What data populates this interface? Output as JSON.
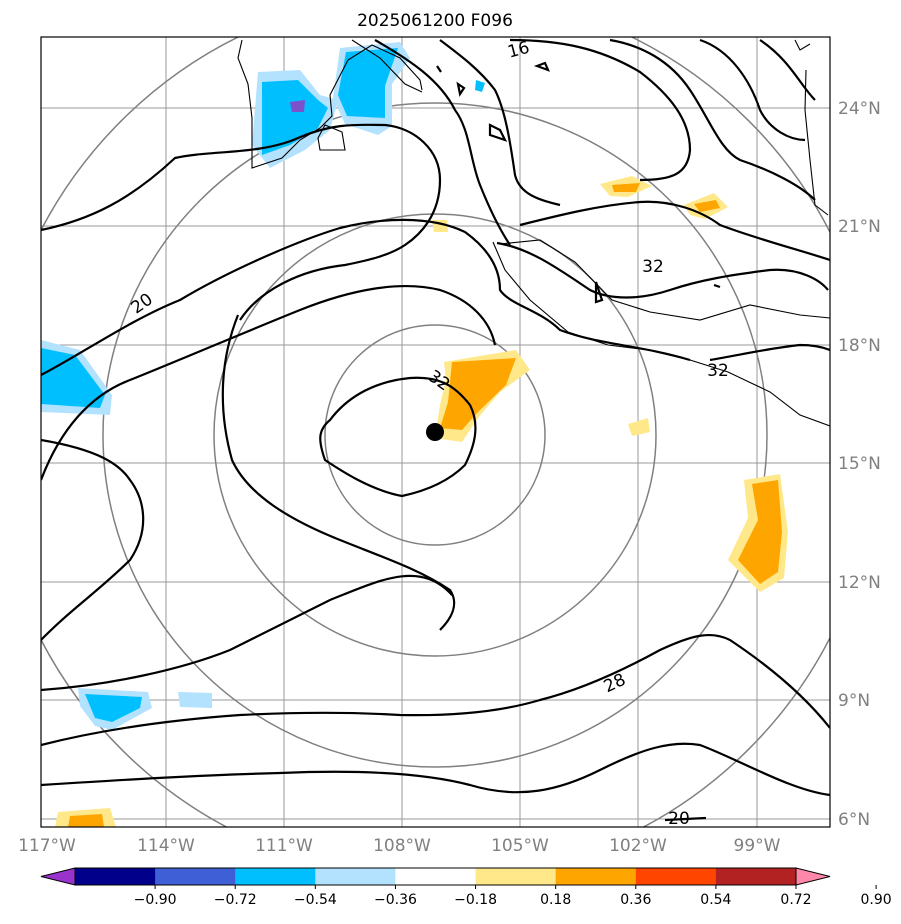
{
  "title": "2025061200 F096",
  "lat_labels": [
    "24°N",
    "21°N",
    "18°N",
    "15°N",
    "12°N",
    "9°N",
    "6°N"
  ],
  "lon_labels": [
    "117°W",
    "114°W",
    "111°W",
    "108°W",
    "105°W",
    "102°W",
    "99°W"
  ],
  "contour_labels": [
    "16",
    "20",
    "32",
    "32",
    "32",
    "28",
    "20"
  ],
  "colorbar": {
    "ticks": [
      "−0.90",
      "−0.72",
      "−0.54",
      "−0.36",
      "−0.18",
      "0.18",
      "0.36",
      "0.54",
      "0.72",
      "0.90"
    ],
    "colors": [
      "#9933cc",
      "#00008b",
      "#3f5fd6",
      "#00bfff",
      "#b3e2ff",
      "#ffffff",
      "#ffe88a",
      "#ffa500",
      "#ff4500",
      "#b22222",
      "#ff88aa"
    ]
  },
  "map": {
    "lon_range": [
      -117,
      -97.5
    ],
    "lat_range": [
      6,
      26
    ],
    "gridlines": true,
    "center_marker": {
      "lon": -107,
      "lat": 15.8
    },
    "range_rings_count": 4
  }
}
